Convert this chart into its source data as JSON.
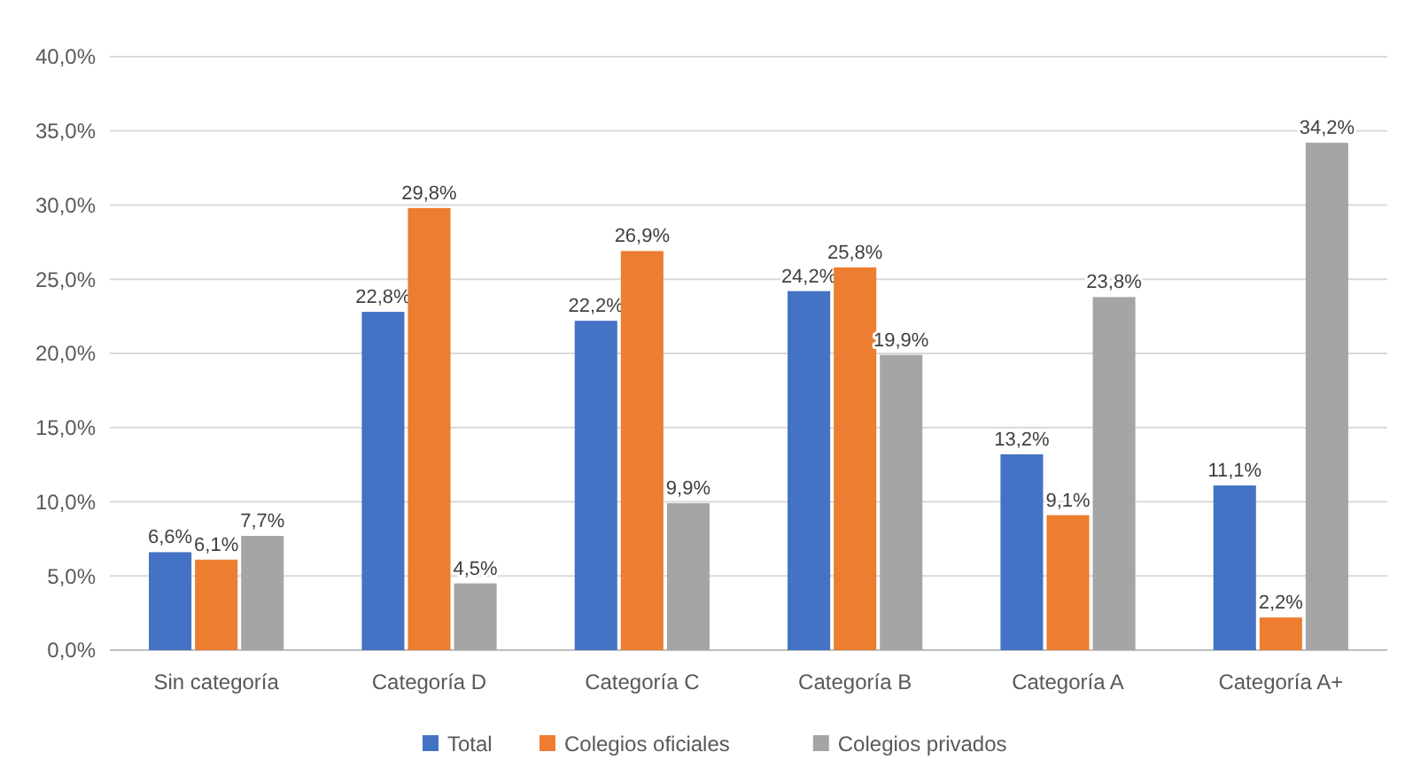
{
  "chart_data": {
    "type": "bar",
    "categories": [
      "Sin categoría",
      "Categoría D",
      "Categoría C",
      "Categoría B",
      "Categoría A",
      "Categoría A+"
    ],
    "series": [
      {
        "name": "Total",
        "color": "#4472c4",
        "values": [
          6.6,
          22.8,
          22.2,
          24.2,
          13.2,
          11.1
        ],
        "value_labels": [
          "6,6%",
          "22,8%",
          "22,2%",
          "24,2%",
          "13,2%",
          "11,1%"
        ]
      },
      {
        "name": "Colegios oficiales",
        "color": "#ed7d31",
        "values": [
          6.1,
          29.8,
          26.9,
          25.8,
          9.1,
          2.2
        ],
        "value_labels": [
          "6,1%",
          "29,8%",
          "26,9%",
          "25,8%",
          "9,1%",
          "2,2%"
        ]
      },
      {
        "name": "Colegios privados",
        "color": "#a5a5a5",
        "values": [
          7.7,
          4.5,
          9.9,
          19.9,
          23.8,
          34.2
        ],
        "value_labels": [
          "7,7%",
          "4,5%",
          "9,9%",
          "19,9%",
          "23,8%",
          "34,2%"
        ]
      }
    ],
    "ylim": [
      0,
      40
    ],
    "yticks": [
      {
        "value": 0,
        "label": "0,0%"
      },
      {
        "value": 5,
        "label": "5,0%"
      },
      {
        "value": 10,
        "label": "10,0%"
      },
      {
        "value": 15,
        "label": "15,0%"
      },
      {
        "value": 20,
        "label": "20,0%"
      },
      {
        "value": 25,
        "label": "25,0%"
      },
      {
        "value": 30,
        "label": "30,0%"
      },
      {
        "value": 35,
        "label": "35,0%"
      },
      {
        "value": 40,
        "label": "40,0%"
      }
    ],
    "grid": "y",
    "legend": "bottom"
  }
}
